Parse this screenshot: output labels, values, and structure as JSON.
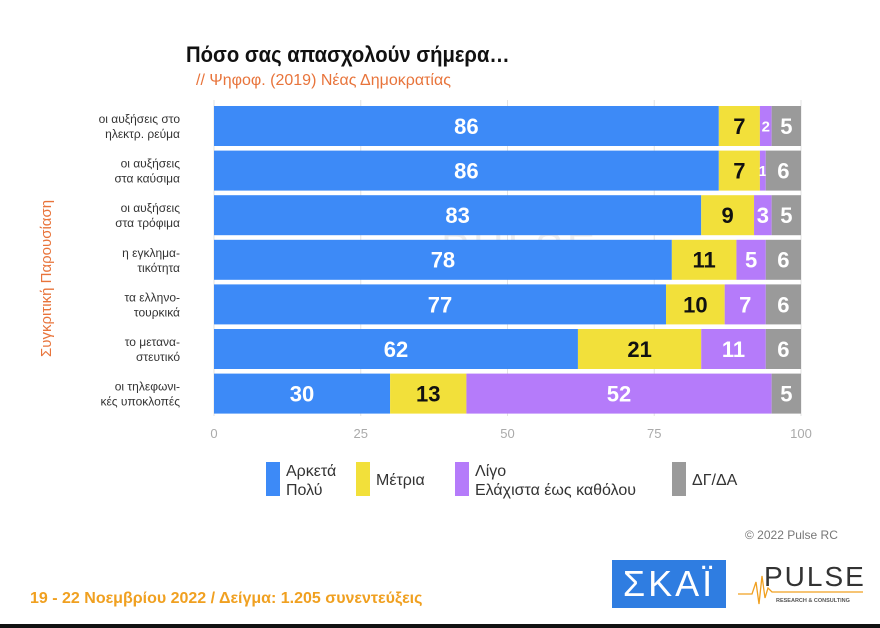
{
  "chart_data": {
    "type": "bar",
    "orientation": "horizontal",
    "stacked": true,
    "title": "Πόσο σας απασχολούν σήμερα…",
    "subtitle": "// Ψηφοφ. (2019)  Νέας Δημοκρατίας",
    "ylabel": "Συγκριτική Παρουσίαση",
    "xlim": [
      0,
      100
    ],
    "xticks": [
      0,
      25,
      50,
      75,
      100
    ],
    "grid": true,
    "legend_position": "bottom",
    "categories": [
      [
        "οι αυξήσεις στο",
        "ηλεκτρ. ρεύμα"
      ],
      [
        "οι αυξήσεις",
        "στα καύσιμα"
      ],
      [
        "οι αυξήσεις",
        "στα τρόφιμα"
      ],
      [
        "η εγκλημα-",
        "τικότητα"
      ],
      [
        "τα ελληνο-",
        "τουρκικά"
      ],
      [
        "το μετανα-",
        "στευτικό"
      ],
      [
        "οι τηλεφωνι-",
        "κές υποκλοπές"
      ]
    ],
    "series": [
      {
        "name": [
          "Αρκετά",
          "Πολύ"
        ],
        "color": "#3d8af7",
        "label_color": "#ffffff",
        "values": [
          86,
          86,
          83,
          78,
          77,
          62,
          30
        ]
      },
      {
        "name": [
          "Μέτρια"
        ],
        "color": "#f2e03a",
        "label_color": "#111111",
        "values": [
          7,
          7,
          9,
          11,
          10,
          21,
          13
        ]
      },
      {
        "name": [
          "Λίγο",
          "Ελάχιστα έως καθόλου"
        ],
        "color": "#b57bfa",
        "label_color": "#ffffff",
        "values": [
          2,
          1,
          3,
          5,
          7,
          11,
          52
        ]
      },
      {
        "name": [
          "ΔΓ/ΔΑ"
        ],
        "color": "#9a9a9a",
        "label_color": "#ffffff",
        "values": [
          5,
          6,
          5,
          6,
          6,
          6,
          5
        ]
      }
    ]
  },
  "footer": "19 - 22 Νοεμβρίου  2022  /  Δείγμα:  1.205 συνεντεύξεις",
  "copyright": "© 2022 Pulse RC",
  "logos": {
    "skai": "ΣΚΑΪ",
    "pulse": "PULSE",
    "pulse_sub": "RESEARCH & CONSULTING"
  }
}
